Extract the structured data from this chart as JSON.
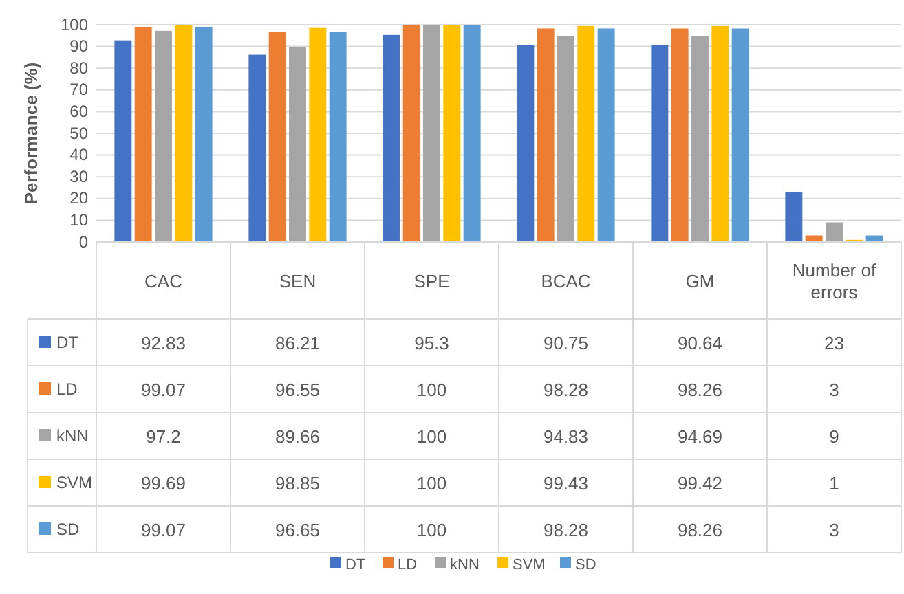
{
  "chart_data": {
    "type": "bar",
    "ylabel": "Performance (%)",
    "categories": [
      "CAC",
      "SEN",
      "SPE",
      "BCAC",
      "GM",
      "Number of errors"
    ],
    "series": [
      {
        "name": "DT",
        "color": "#4472c4",
        "values": [
          92.83,
          86.21,
          95.3,
          90.75,
          90.64,
          23
        ]
      },
      {
        "name": "LD",
        "color": "#ed7d31",
        "values": [
          99.07,
          96.55,
          100,
          98.28,
          98.26,
          3
        ]
      },
      {
        "name": "kNN",
        "color": "#a5a5a5",
        "values": [
          97.2,
          89.66,
          100,
          94.83,
          94.69,
          9
        ]
      },
      {
        "name": "SVM",
        "color": "#ffc000",
        "values": [
          99.69,
          98.85,
          100,
          99.43,
          99.42,
          1
        ]
      },
      {
        "name": "SD",
        "color": "#5b9bd5",
        "values": [
          99.07,
          96.65,
          100,
          98.28,
          98.26,
          3
        ]
      }
    ],
    "ylim": [
      0,
      100
    ],
    "yticks": [
      0,
      10,
      20,
      30,
      40,
      50,
      60,
      70,
      80,
      90,
      100
    ],
    "grid": "y",
    "legend": "bottom",
    "data_labels": true
  }
}
